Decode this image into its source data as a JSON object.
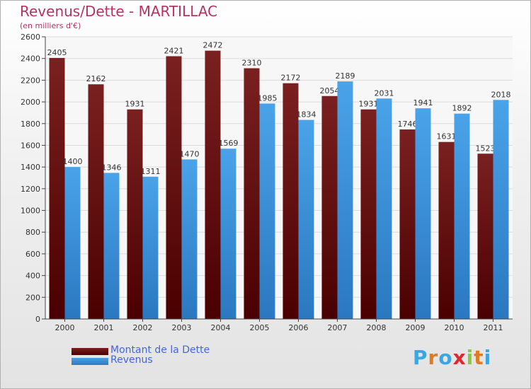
{
  "header": {
    "title": "Revenus/Dette - MARTILLAC",
    "subtitle": "(en milliers d'€)"
  },
  "colors": {
    "debt": "#7a2020",
    "debt_dark": "#4a0000",
    "revenue": "#4aa3e8",
    "revenue_dark": "#2a78c0",
    "axis": "#444444",
    "grid": "#dcdcdc"
  },
  "chart_data": {
    "type": "bar",
    "categories": [
      "2000",
      "2001",
      "2002",
      "2003",
      "2004",
      "2005",
      "2006",
      "2007",
      "2008",
      "2009",
      "2010",
      "2011"
    ],
    "series": [
      {
        "name": "Montant de la Dette",
        "values": [
          2405,
          2162,
          1931,
          2421,
          2472,
          2310,
          2172,
          2054,
          1931,
          1746,
          1631,
          1523
        ]
      },
      {
        "name": "Revenus",
        "values": [
          1400,
          1346,
          1311,
          1470,
          1569,
          1985,
          1834,
          2189,
          2031,
          1941,
          1892,
          2018
        ]
      }
    ],
    "ylim": [
      0,
      2600
    ],
    "yticks": [
      0,
      200,
      400,
      600,
      800,
      1000,
      1200,
      1400,
      1600,
      1800,
      2000,
      2200,
      2400,
      2600
    ],
    "grid": true,
    "legend_position": "bottom-left"
  },
  "legend": {
    "items": [
      {
        "label": "Montant de la Dette"
      },
      {
        "label": "Revenus"
      }
    ]
  },
  "logo": {
    "letters": [
      "P",
      "r",
      "o",
      "x",
      "i",
      "t",
      "i"
    ],
    "colors": [
      "#3aa7e0",
      "#e07b1f",
      "#3aa7e0",
      "#e0262f",
      "#8dc63f",
      "#e07b1f",
      "#3aa7e0"
    ]
  }
}
